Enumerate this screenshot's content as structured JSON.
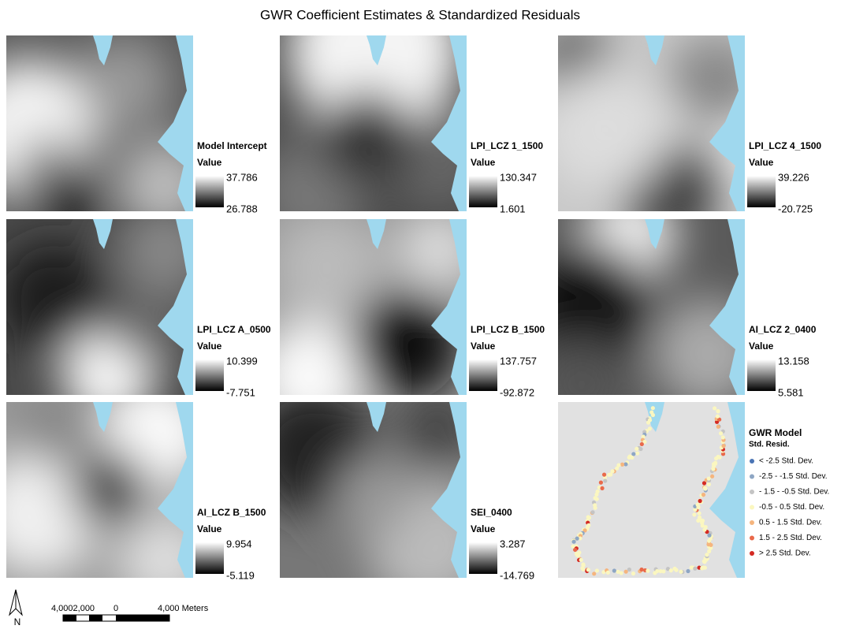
{
  "title": "GWR Coefficient Estimates & Standardized Residuals",
  "panels": [
    {
      "name": "Model Intercept",
      "value_label": "Value",
      "max": "37.786",
      "min": "26.788"
    },
    {
      "name": "LPI_LCZ 1_1500",
      "value_label": "Value",
      "max": "130.347",
      "min": "1.601"
    },
    {
      "name": "LPI_LCZ 4_1500",
      "value_label": "Value",
      "max": "39.226",
      "min": "-20.725"
    },
    {
      "name": "LPI_LCZ A_0500",
      "value_label": "Value",
      "max": "10.399",
      "min": "-7.751"
    },
    {
      "name": "LPI_LCZ B_1500",
      "value_label": "Value",
      "max": "137.757",
      "min": "-92.872"
    },
    {
      "name": "AI_LCZ 2_0400",
      "value_label": "Value",
      "max": "13.158",
      "min": "5.581"
    },
    {
      "name": "AI_LCZ B_1500",
      "value_label": "Value",
      "max": "9.954",
      "min": "-5.119"
    },
    {
      "name": "SEI_0400",
      "value_label": "Value",
      "max": "3.287",
      "min": "-14.769"
    }
  ],
  "residuals": {
    "title": "GWR Model",
    "subtitle": "Std. Resid.",
    "classes": [
      {
        "label": "< -2.5 Std. Dev.",
        "color": "#4a74b4"
      },
      {
        "label": "-2.5 - -1.5 Std. Dev.",
        "color": "#8ea6c4"
      },
      {
        "label": "- 1.5 - -0.5 Std. Dev.",
        "color": "#c4c4c4"
      },
      {
        "label": "-0.5 - 0.5 Std. Dev.",
        "color": "#fbf7c0"
      },
      {
        "label": "0.5 - 1.5 Std. Dev.",
        "color": "#f5b57e"
      },
      {
        "label": "1.5 - 2.5 Std. Dev.",
        "color": "#e9694a"
      },
      {
        "label": "> 2.5 Std. Dev.",
        "color": "#d42a23"
      }
    ]
  },
  "scale_bar": {
    "labels": [
      "4,0002,000",
      "0",
      "4,000 Meters"
    ]
  },
  "north": "N"
}
